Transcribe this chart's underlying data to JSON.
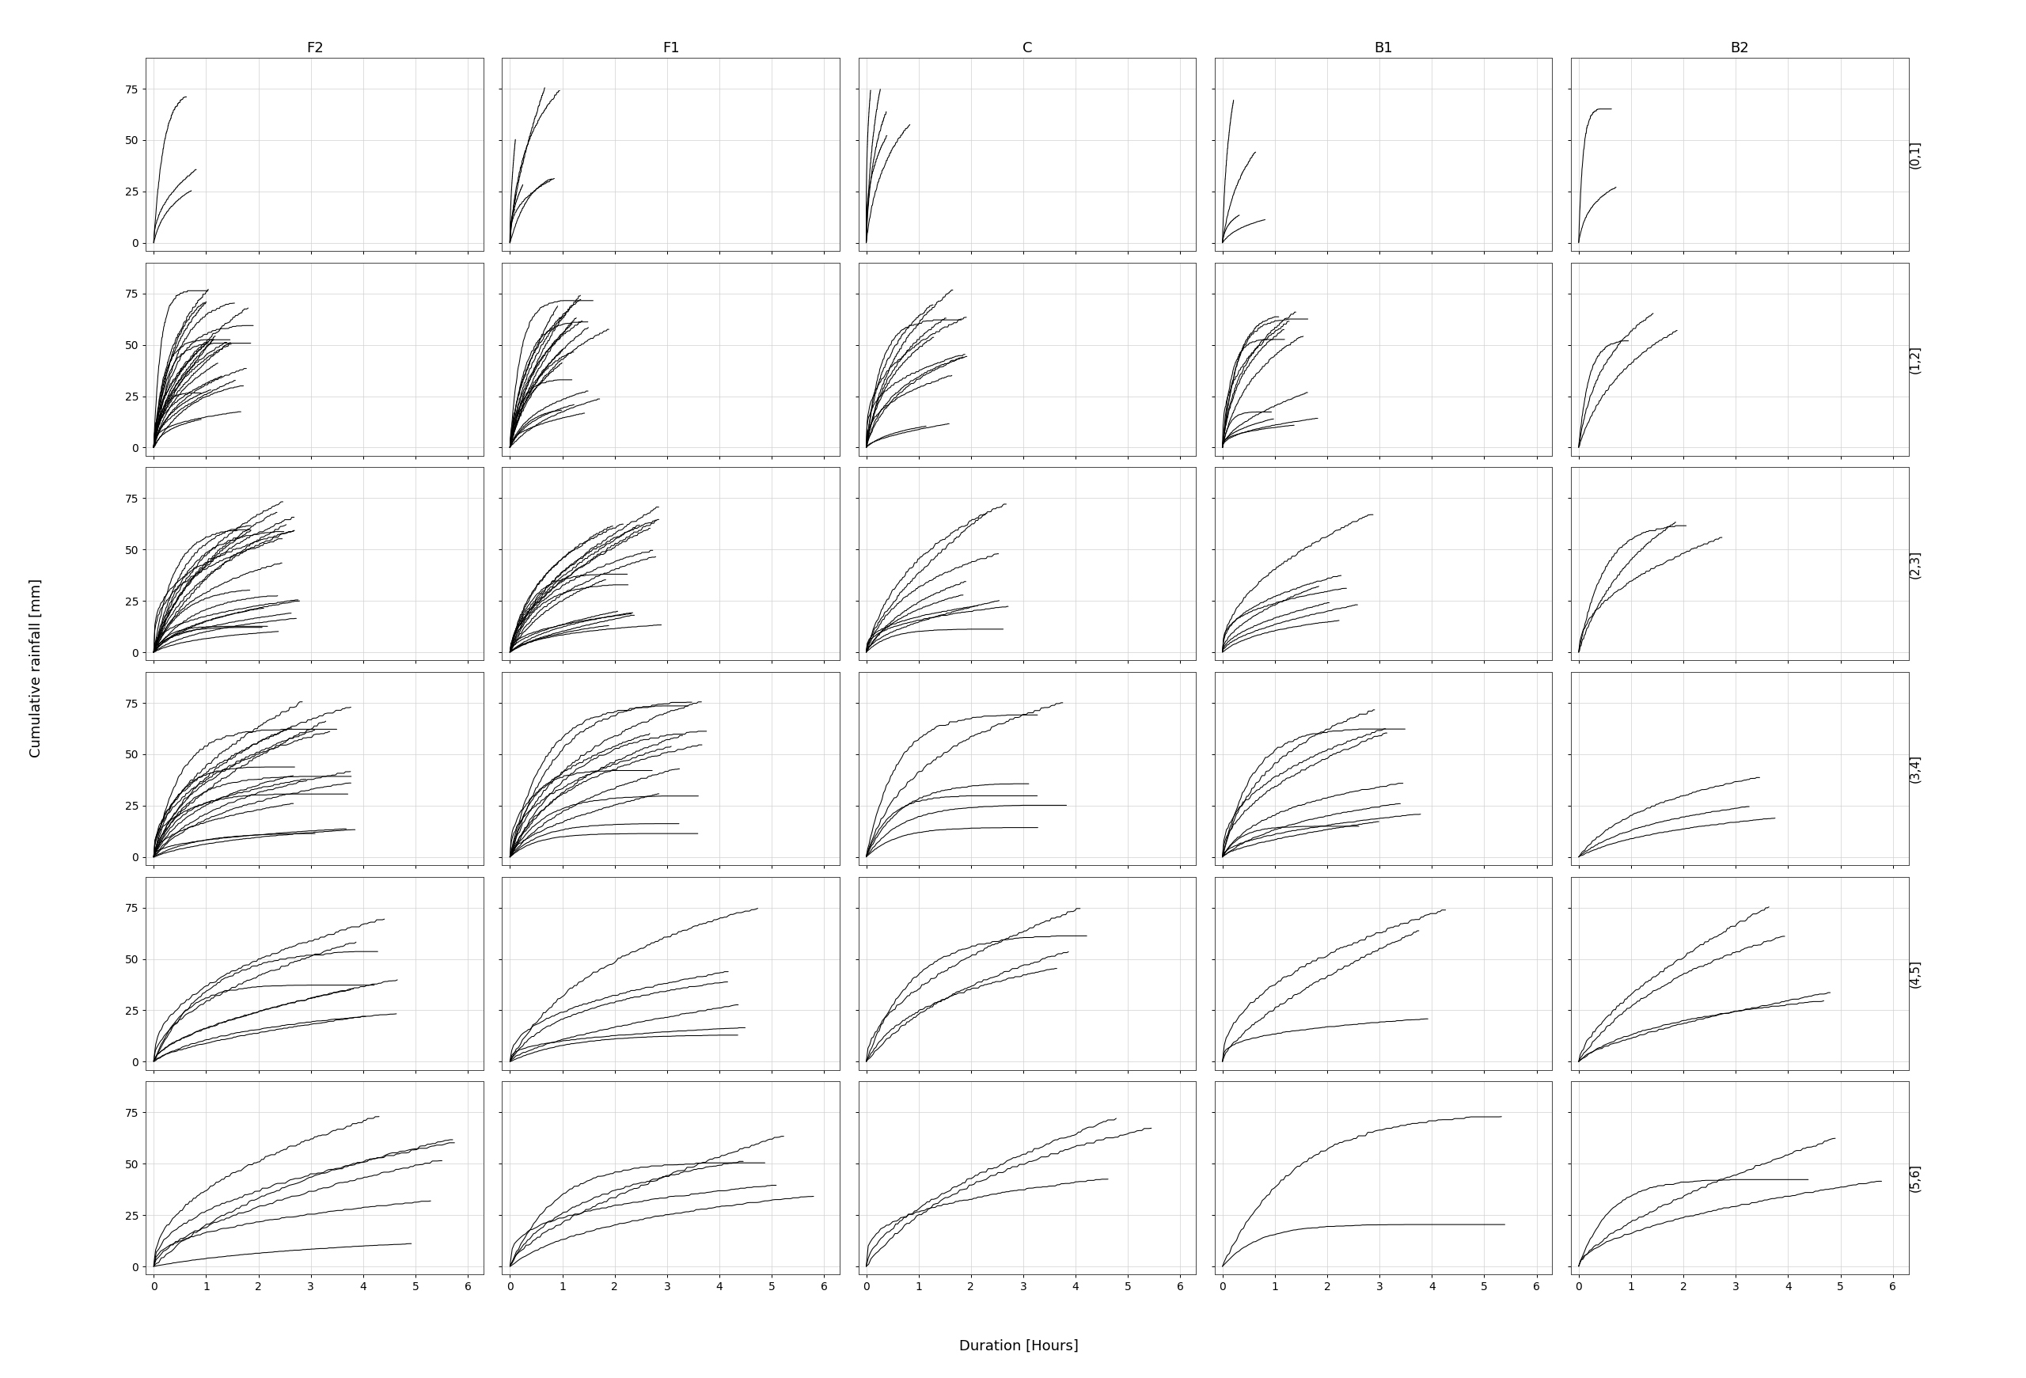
{
  "col_labels": [
    "F2",
    "F1",
    "C",
    "B1",
    "B2"
  ],
  "row_labels": [
    "(0,1]",
    "(1,2]",
    "(2,3]",
    "(3,4]",
    "(4,5]",
    "(5,6]"
  ],
  "xlabel": "Duration [Hours]",
  "ylabel": "Cumulative rainfall [mm]",
  "xlim": [
    -0.15,
    6.3
  ],
  "ylim": [
    -4,
    90
  ],
  "yticks": [
    0,
    25,
    50,
    75
  ],
  "xticks": [
    0,
    1,
    2,
    3,
    4,
    5,
    6
  ],
  "line_color": "#000000",
  "line_width": 0.75,
  "background_color": "#ffffff",
  "grid_color": "#d0d0d0",
  "n_events": {
    "F2": [
      3,
      25,
      22,
      18,
      8,
      6
    ],
    "F1": [
      8,
      20,
      18,
      14,
      6,
      5
    ],
    "C": [
      5,
      12,
      9,
      6,
      4,
      3
    ],
    "B1": [
      4,
      12,
      7,
      9,
      3,
      2
    ],
    "B2": [
      2,
      3,
      3,
      3,
      4,
      3
    ]
  },
  "seed": 7
}
